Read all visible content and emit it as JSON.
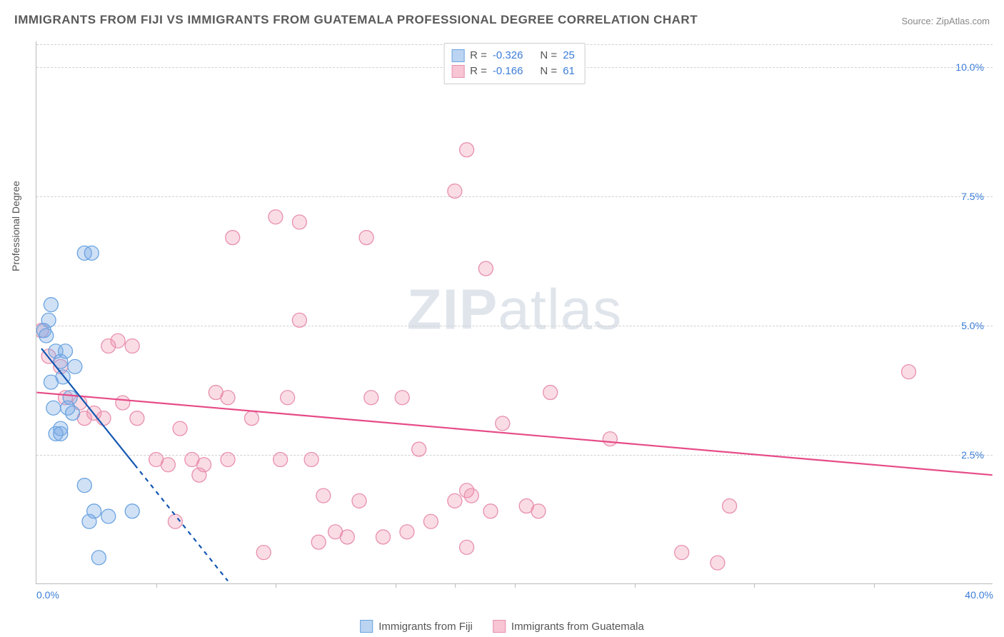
{
  "title": "IMMIGRANTS FROM FIJI VS IMMIGRANTS FROM GUATEMALA PROFESSIONAL DEGREE CORRELATION CHART",
  "source": "Source: ZipAtlas.com",
  "watermark_zip": "ZIP",
  "watermark_atlas": "atlas",
  "ylabel": "Professional Degree",
  "colors": {
    "blue_fill": "rgba(120,170,230,0.35)",
    "blue_stroke": "#6aa3e0",
    "blue_line": "#1257b0",
    "pink_fill": "rgba(240,140,170,0.3)",
    "pink_stroke": "#e88fae",
    "pink_line": "#e64b87",
    "axis_text": "#3b7dd8",
    "grid": "#d0d0d0"
  },
  "marker_radius": 10,
  "fonts": {
    "title_size": 17,
    "axis_label_size": 14,
    "tick_size": 14,
    "legend_size": 15
  },
  "xlim": [
    0,
    40
  ],
  "ylim": [
    0,
    10.5
  ],
  "xticks_pct": [
    5,
    10,
    15,
    17.5,
    20,
    25,
    30,
    35
  ],
  "xlabels": [
    {
      "v": 0,
      "t": "0.0%"
    },
    {
      "v": 40,
      "t": "40.0%"
    }
  ],
  "yticks": [
    {
      "v": 2.5,
      "t": "2.5%"
    },
    {
      "v": 5.0,
      "t": "5.0%"
    },
    {
      "v": 7.5,
      "t": "7.5%"
    },
    {
      "v": 10.0,
      "t": "10.0%"
    }
  ],
  "stats": [
    {
      "swatch_fill": "rgba(120,170,230,0.5)",
      "swatch_border": "#6aa3e0",
      "R_label": "R =",
      "R": "-0.326",
      "N_label": "N =",
      "N": "25"
    },
    {
      "swatch_fill": "rgba(240,140,170,0.5)",
      "swatch_border": "#e88fae",
      "R_label": "R =",
      "R": "-0.166",
      "N_label": "N =",
      "N": "61"
    }
  ],
  "legend": [
    {
      "swatch_fill": "rgba(120,170,230,0.5)",
      "swatch_border": "#6aa3e0",
      "label": "Immigrants from Fiji"
    },
    {
      "swatch_fill": "rgba(240,140,170,0.5)",
      "swatch_border": "#e88fae",
      "label": "Immigrants from Guatemala"
    }
  ],
  "trend_lines": {
    "blue_solid": {
      "x1": 0.2,
      "y1": 4.55,
      "x2": 4.1,
      "y2": 2.3
    },
    "blue_dashed": {
      "x1": 4.1,
      "y1": 2.3,
      "x2": 8.0,
      "y2": 0.05
    },
    "pink": {
      "x1": 0,
      "y1": 3.7,
      "x2": 40,
      "y2": 2.1
    }
  },
  "series": {
    "fiji": [
      {
        "x": 0.3,
        "y": 4.9
      },
      {
        "x": 0.4,
        "y": 4.8
      },
      {
        "x": 0.5,
        "y": 5.1
      },
      {
        "x": 0.8,
        "y": 4.5
      },
      {
        "x": 1.0,
        "y": 4.3
      },
      {
        "x": 1.1,
        "y": 4.0
      },
      {
        "x": 0.6,
        "y": 3.9
      },
      {
        "x": 0.7,
        "y": 3.4
      },
      {
        "x": 1.3,
        "y": 3.4
      },
      {
        "x": 1.5,
        "y": 3.3
      },
      {
        "x": 1.0,
        "y": 3.0
      },
      {
        "x": 1.4,
        "y": 3.6
      },
      {
        "x": 0.8,
        "y": 2.9
      },
      {
        "x": 1.0,
        "y": 2.9
      },
      {
        "x": 1.6,
        "y": 4.2
      },
      {
        "x": 1.2,
        "y": 4.5
      },
      {
        "x": 2.0,
        "y": 1.9
      },
      {
        "x": 2.4,
        "y": 1.4
      },
      {
        "x": 2.2,
        "y": 1.2
      },
      {
        "x": 3.0,
        "y": 1.3
      },
      {
        "x": 2.6,
        "y": 0.5
      },
      {
        "x": 0.6,
        "y": 5.4
      },
      {
        "x": 2.0,
        "y": 6.4
      },
      {
        "x": 2.3,
        "y": 6.4
      },
      {
        "x": 4.0,
        "y": 1.4
      }
    ],
    "guatemala": [
      {
        "x": 0.2,
        "y": 4.9
      },
      {
        "x": 0.5,
        "y": 4.4
      },
      {
        "x": 1.0,
        "y": 4.2
      },
      {
        "x": 1.2,
        "y": 3.6
      },
      {
        "x": 1.8,
        "y": 3.5
      },
      {
        "x": 2.0,
        "y": 3.2
      },
      {
        "x": 2.4,
        "y": 3.3
      },
      {
        "x": 2.8,
        "y": 3.2
      },
      {
        "x": 3.0,
        "y": 4.6
      },
      {
        "x": 3.4,
        "y": 4.7
      },
      {
        "x": 3.6,
        "y": 3.5
      },
      {
        "x": 4.0,
        "y": 4.6
      },
      {
        "x": 4.2,
        "y": 3.2
      },
      {
        "x": 5.0,
        "y": 2.4
      },
      {
        "x": 5.5,
        "y": 2.3
      },
      {
        "x": 5.8,
        "y": 1.2
      },
      {
        "x": 6.0,
        "y": 3.0
      },
      {
        "x": 6.5,
        "y": 2.4
      },
      {
        "x": 6.8,
        "y": 2.1
      },
      {
        "x": 7.0,
        "y": 2.3
      },
      {
        "x": 7.5,
        "y": 3.7
      },
      {
        "x": 8.0,
        "y": 3.6
      },
      {
        "x": 8.0,
        "y": 2.4
      },
      {
        "x": 8.2,
        "y": 6.7
      },
      {
        "x": 9.0,
        "y": 3.2
      },
      {
        "x": 9.5,
        "y": 0.6
      },
      {
        "x": 10.0,
        "y": 7.1
      },
      {
        "x": 10.2,
        "y": 2.4
      },
      {
        "x": 10.5,
        "y": 3.6
      },
      {
        "x": 11.0,
        "y": 5.1
      },
      {
        "x": 11.5,
        "y": 2.4
      },
      {
        "x": 11.8,
        "y": 0.8
      },
      {
        "x": 12.0,
        "y": 1.7
      },
      {
        "x": 12.5,
        "y": 1.0
      },
      {
        "x": 13.0,
        "y": 0.9
      },
      {
        "x": 13.5,
        "y": 1.6
      },
      {
        "x": 14.0,
        "y": 3.6
      },
      {
        "x": 14.5,
        "y": 0.9
      },
      {
        "x": 15.3,
        "y": 3.6
      },
      {
        "x": 15.5,
        "y": 1.0
      },
      {
        "x": 13.8,
        "y": 6.7
      },
      {
        "x": 16.0,
        "y": 2.6
      },
      {
        "x": 16.5,
        "y": 1.2
      },
      {
        "x": 17.5,
        "y": 1.6
      },
      {
        "x": 17.5,
        "y": 7.6
      },
      {
        "x": 18.0,
        "y": 1.8
      },
      {
        "x": 18.2,
        "y": 1.7
      },
      {
        "x": 18.0,
        "y": 0.7
      },
      {
        "x": 18.0,
        "y": 8.4
      },
      {
        "x": 19.0,
        "y": 1.4
      },
      {
        "x": 19.5,
        "y": 3.1
      },
      {
        "x": 18.8,
        "y": 6.1
      },
      {
        "x": 20.5,
        "y": 1.5
      },
      {
        "x": 21.0,
        "y": 1.4
      },
      {
        "x": 21.5,
        "y": 3.7
      },
      {
        "x": 24.0,
        "y": 2.8
      },
      {
        "x": 27.0,
        "y": 0.6
      },
      {
        "x": 28.5,
        "y": 0.4
      },
      {
        "x": 29.0,
        "y": 1.5
      },
      {
        "x": 36.5,
        "y": 4.1
      },
      {
        "x": 11.0,
        "y": 7.0
      }
    ]
  }
}
